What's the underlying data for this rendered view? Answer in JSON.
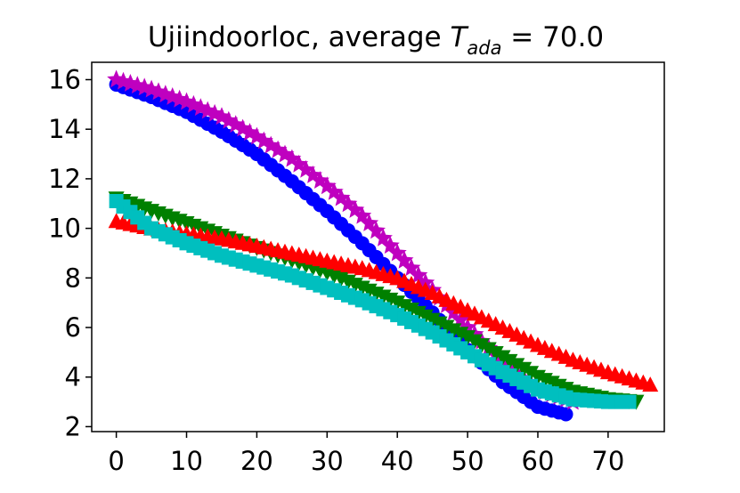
{
  "chart_data": {
    "type": "scatter",
    "title": "Ujiindoorloc, average T_ada = 70.0",
    "title_prefix": "Ujiindoorloc, average ",
    "title_symbol": "T",
    "title_subscript": "ada",
    "title_suffix": " = 70.0",
    "xlabel": "",
    "ylabel": "",
    "xlim": [
      -3.5,
      78
    ],
    "ylim": [
      1.8,
      16.7
    ],
    "x_ticks": [
      0,
      10,
      20,
      30,
      40,
      50,
      60,
      70
    ],
    "y_ticks": [
      2,
      4,
      6,
      8,
      10,
      12,
      14,
      16
    ],
    "grid": false,
    "series": [
      {
        "name": "blue circles",
        "color": "#0000ff",
        "marker": "circle",
        "points": [
          [
            0,
            15.8
          ],
          [
            5,
            15.3
          ],
          [
            10,
            14.7
          ],
          [
            15,
            13.9
          ],
          [
            20,
            13.0
          ],
          [
            25,
            11.9
          ],
          [
            30,
            10.7
          ],
          [
            35,
            9.4
          ],
          [
            40,
            8.0
          ],
          [
            45,
            6.6
          ],
          [
            50,
            5.1
          ],
          [
            55,
            3.8
          ],
          [
            60,
            2.8
          ],
          [
            64,
            2.5
          ]
        ]
      },
      {
        "name": "magenta stars",
        "color": "#bf00bf",
        "marker": "star",
        "points": [
          [
            0,
            16.0
          ],
          [
            5,
            15.6
          ],
          [
            10,
            15.1
          ],
          [
            15,
            14.5
          ],
          [
            20,
            13.7
          ],
          [
            25,
            12.8
          ],
          [
            30,
            11.7
          ],
          [
            35,
            10.5
          ],
          [
            40,
            9.0
          ],
          [
            45,
            7.5
          ],
          [
            50,
            6.0
          ],
          [
            55,
            4.6
          ],
          [
            60,
            3.5
          ],
          [
            65,
            3.0
          ]
        ]
      },
      {
        "name": "green down triangles",
        "color": "#008000",
        "marker": "triangle-down",
        "points": [
          [
            0,
            11.2
          ],
          [
            5,
            10.7
          ],
          [
            10,
            10.2
          ],
          [
            15,
            9.7
          ],
          [
            20,
            9.2
          ],
          [
            25,
            8.7
          ],
          [
            30,
            8.2
          ],
          [
            35,
            7.6
          ],
          [
            40,
            7.0
          ],
          [
            45,
            6.3
          ],
          [
            50,
            5.6
          ],
          [
            55,
            4.8
          ],
          [
            60,
            4.0
          ],
          [
            65,
            3.4
          ],
          [
            70,
            3.1
          ],
          [
            74,
            3.0
          ]
        ]
      },
      {
        "name": "red up triangles",
        "color": "#ff0000",
        "marker": "triangle-up",
        "points": [
          [
            0,
            10.3
          ],
          [
            5,
            10.0
          ],
          [
            10,
            9.8
          ],
          [
            15,
            9.6
          ],
          [
            20,
            9.3
          ],
          [
            25,
            9.0
          ],
          [
            30,
            8.7
          ],
          [
            35,
            8.4
          ],
          [
            40,
            8.0
          ],
          [
            45,
            7.4
          ],
          [
            50,
            6.7
          ],
          [
            55,
            6.0
          ],
          [
            60,
            5.3
          ],
          [
            65,
            4.7
          ],
          [
            70,
            4.2
          ],
          [
            76,
            3.7
          ]
        ]
      },
      {
        "name": "cyan squares",
        "color": "#00bfbf",
        "marker": "square",
        "points": [
          [
            0,
            11.1
          ],
          [
            5,
            10.0
          ],
          [
            10,
            9.4
          ],
          [
            15,
            8.9
          ],
          [
            20,
            8.5
          ],
          [
            25,
            8.1
          ],
          [
            30,
            7.6
          ],
          [
            35,
            7.1
          ],
          [
            40,
            6.5
          ],
          [
            45,
            5.8
          ],
          [
            50,
            5.0
          ],
          [
            55,
            4.2
          ],
          [
            60,
            3.5
          ],
          [
            65,
            3.1
          ],
          [
            70,
            3.0
          ],
          [
            73,
            3.0
          ]
        ]
      }
    ]
  }
}
